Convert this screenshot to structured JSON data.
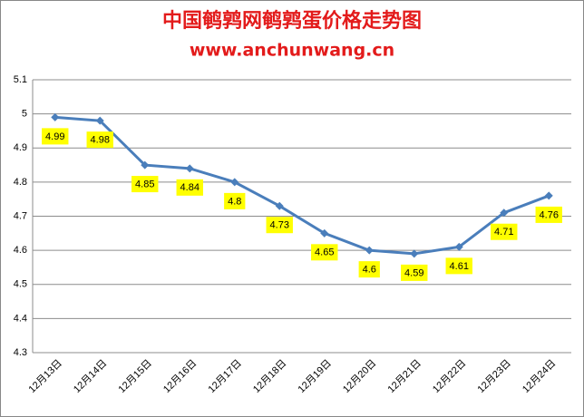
{
  "chart_data": {
    "type": "line",
    "title": "中国鹌鹑网鹌鹑蛋价格走势图",
    "subtitle": "www.anchunwang.cn",
    "categories": [
      "12月13日",
      "12月14日",
      "12月15日",
      "12月16日",
      "12月17日",
      "12月18日",
      "12月19日",
      "12月20日",
      "12月21日",
      "12月22日",
      "12月23日",
      "12月24日"
    ],
    "values": [
      4.99,
      4.98,
      4.85,
      4.84,
      4.8,
      4.73,
      4.65,
      4.6,
      4.59,
      4.61,
      4.71,
      4.76
    ],
    "color": "#4a7ebb",
    "ylim": [
      4.3,
      5.1
    ],
    "yticks": [
      4.3,
      4.4,
      4.5,
      4.6,
      4.7,
      4.8,
      4.9,
      5,
      5.1
    ],
    "grid": true
  }
}
